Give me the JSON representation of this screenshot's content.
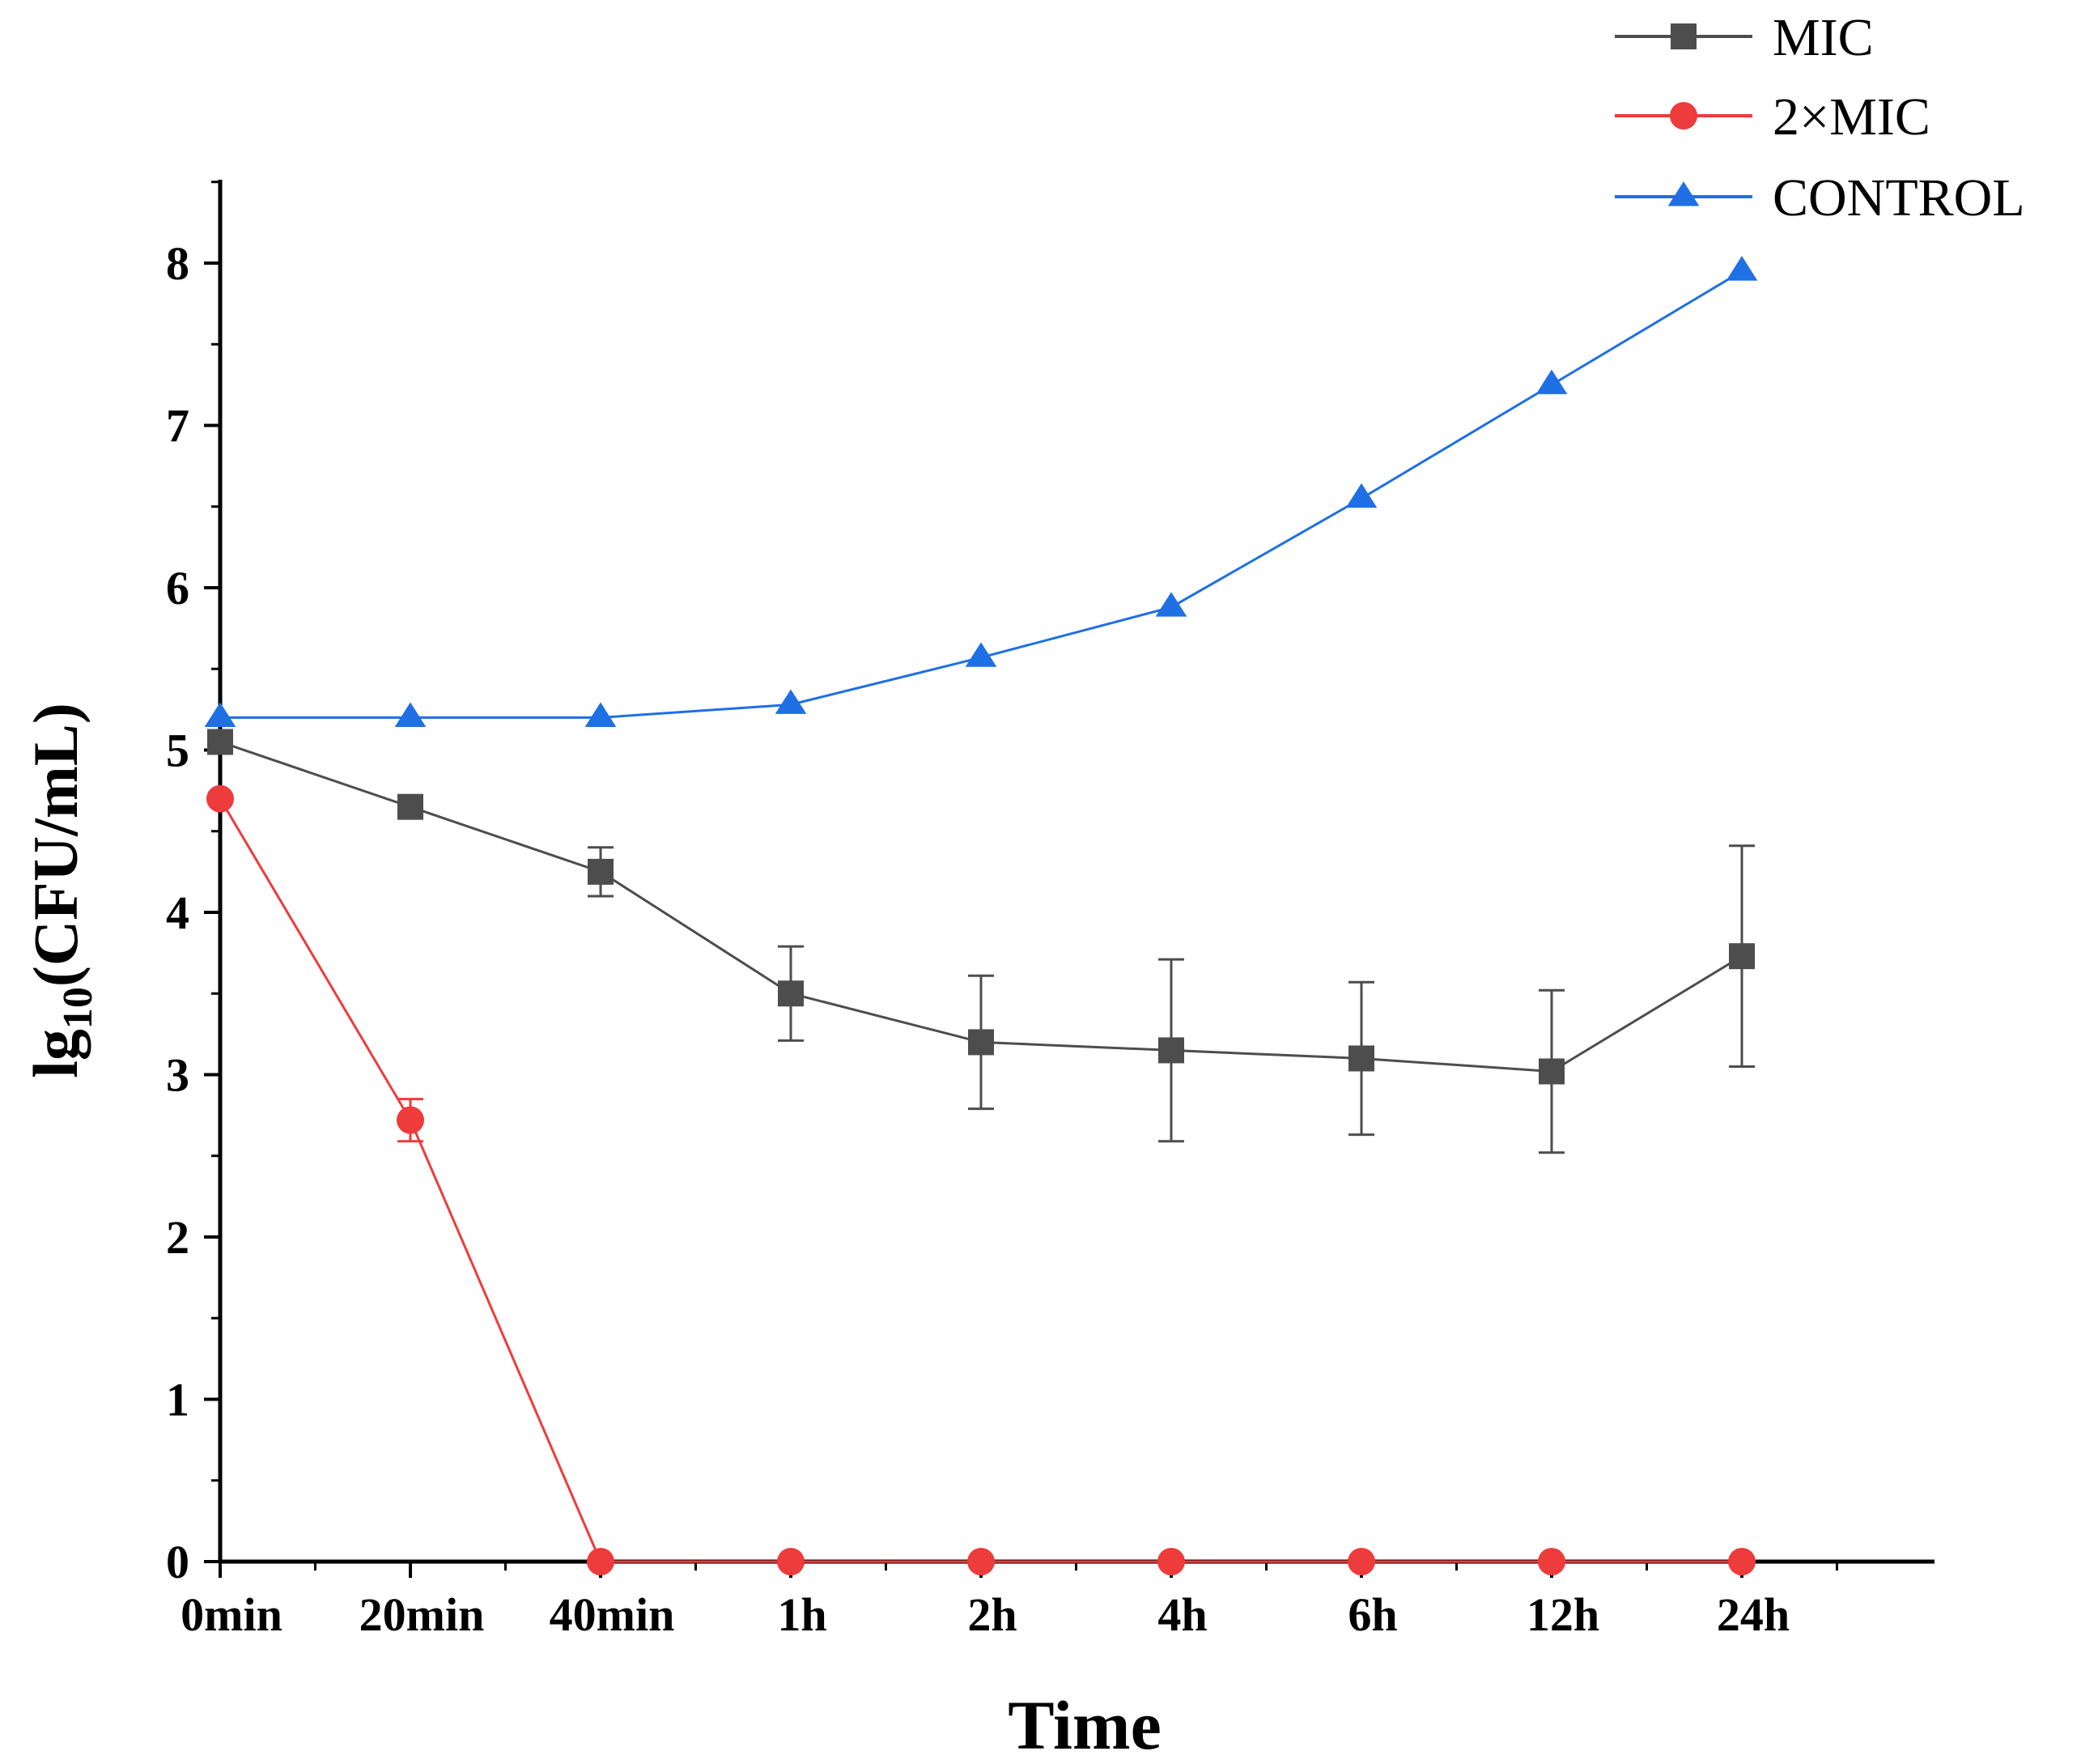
{
  "chart_data": {
    "type": "line",
    "title": "",
    "xlabel": "Time",
    "ylabel_main": "lg",
    "ylabel_sub": "10",
    "ylabel_rest": "(CFU/mL)",
    "categories": [
      "0min",
      "20min",
      "40min",
      "1h",
      "2h",
      "4h",
      "6h",
      "12h",
      "24h"
    ],
    "ylim": [
      0,
      8.5
    ],
    "yticks": [
      "0",
      "1",
      "2",
      "3",
      "4",
      "5",
      "6",
      "7",
      "8"
    ],
    "legend_position": "top-right",
    "series": [
      {
        "name": "MIC",
        "color": "#4d4d4d",
        "marker": "square",
        "values": [
          5.05,
          4.65,
          4.25,
          3.5,
          3.2,
          3.15,
          3.1,
          3.02,
          3.73
        ],
        "errors": [
          0.05,
          0.04,
          0.15,
          0.29,
          0.41,
          0.56,
          0.47,
          0.5,
          0.68
        ]
      },
      {
        "name": "2×MIC",
        "color": "#ee3b3b",
        "marker": "circle",
        "values": [
          4.7,
          2.72,
          0,
          0,
          0,
          0,
          0,
          0,
          0
        ],
        "errors": [
          0.05,
          0.13,
          0,
          0,
          0,
          0,
          0,
          0,
          0
        ]
      },
      {
        "name": "CONTROL",
        "color": "#1f6fe5",
        "marker": "triangle",
        "values": [
          5.2,
          5.2,
          5.2,
          5.28,
          5.57,
          5.88,
          6.55,
          7.25,
          7.95
        ],
        "errors": [
          0,
          0,
          0,
          0,
          0,
          0,
          0,
          0,
          0
        ]
      }
    ]
  }
}
